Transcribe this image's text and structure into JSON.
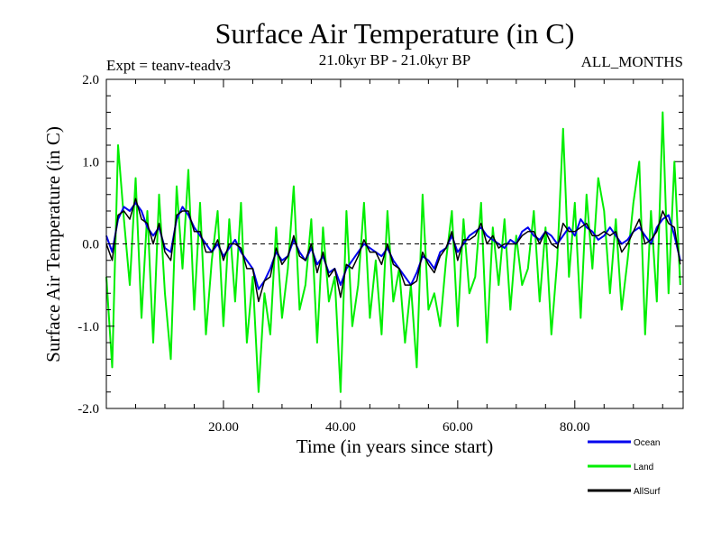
{
  "chart_data": {
    "type": "line",
    "title": "Surface Air Temperature (in C)",
    "subtitle_left": "Expt = teanv-teadv3",
    "subtitle_center": "21.0kyr BP - 21.0kyr BP",
    "subtitle_right": "ALL_MONTHS",
    "xlabel": "Time (in years since start)",
    "ylabel": "Surface Air Temperature (in C)",
    "xlim": [
      0,
      98.5
    ],
    "ylim": [
      -2.0,
      2.0
    ],
    "xticks": [
      20,
      40,
      60,
      80
    ],
    "xtick_labels": [
      "20.00",
      "40.00",
      "60.00",
      "80.00"
    ],
    "yticks": [
      -2.0,
      -1.0,
      0.0,
      1.0,
      2.0
    ],
    "ytick_labels": [
      "-2.0",
      "-1.0",
      "0.0",
      "1.0",
      "2.0"
    ],
    "zero_line": true,
    "grid": false,
    "legend_position": "bottom-right",
    "series": [
      {
        "name": "Land",
        "color": "#00ee00",
        "x": [
          0,
          1,
          2,
          3,
          4,
          5,
          6,
          7,
          8,
          9,
          10,
          11,
          12,
          13,
          14,
          15,
          16,
          17,
          18,
          19,
          20,
          21,
          22,
          23,
          24,
          25,
          26,
          27,
          28,
          29,
          30,
          31,
          32,
          33,
          34,
          35,
          36,
          37,
          38,
          39,
          40,
          41,
          42,
          43,
          44,
          45,
          46,
          47,
          48,
          49,
          50,
          51,
          52,
          53,
          54,
          55,
          56,
          57,
          58,
          59,
          60,
          61,
          62,
          63,
          64,
          65,
          66,
          67,
          68,
          69,
          70,
          71,
          72,
          73,
          74,
          75,
          76,
          77,
          78,
          79,
          80,
          81,
          82,
          83,
          84,
          85,
          86,
          87,
          88,
          89,
          90,
          91,
          92,
          93,
          94,
          95,
          96,
          97,
          98
        ],
        "values": [
          -0.4,
          -1.5,
          1.2,
          0.3,
          -0.5,
          0.8,
          -0.9,
          0.4,
          -1.2,
          0.6,
          -0.6,
          -1.4,
          0.7,
          -0.3,
          0.9,
          -0.8,
          0.5,
          -1.1,
          -0.2,
          0.4,
          -1.0,
          0.3,
          -0.7,
          0.5,
          -1.2,
          -0.4,
          -1.8,
          -0.6,
          -1.1,
          0.2,
          -0.9,
          -0.3,
          0.7,
          -0.8,
          -0.5,
          0.3,
          -1.2,
          0.2,
          -0.7,
          -0.4,
          -1.8,
          0.4,
          -1.0,
          -0.5,
          0.5,
          -0.9,
          -0.2,
          -1.1,
          0.4,
          -0.7,
          -0.3,
          -1.2,
          -0.5,
          -1.5,
          0.6,
          -0.8,
          -0.6,
          -1.0,
          -0.2,
          0.4,
          -1.0,
          0.3,
          -0.6,
          -0.4,
          0.5,
          -1.2,
          0.2,
          -0.5,
          0.3,
          -0.8,
          0.1,
          -0.5,
          -0.3,
          0.4,
          -0.7,
          0.2,
          -1.1,
          -0.2,
          1.4,
          -0.4,
          0.5,
          -0.9,
          0.6,
          -0.3,
          0.8,
          0.4,
          -0.6,
          0.3,
          -0.8,
          -0.2,
          0.5,
          1.0,
          -1.1,
          0.4,
          -0.7,
          1.6,
          -0.6,
          1.0,
          -0.5
        ]
      },
      {
        "name": "Ocean",
        "color": "#0000ee",
        "x": [
          0,
          1,
          2,
          3,
          4,
          5,
          6,
          7,
          8,
          9,
          10,
          11,
          12,
          13,
          14,
          15,
          16,
          17,
          18,
          19,
          20,
          21,
          22,
          23,
          24,
          25,
          26,
          27,
          28,
          29,
          30,
          31,
          32,
          33,
          34,
          35,
          36,
          37,
          38,
          39,
          40,
          41,
          42,
          43,
          44,
          45,
          46,
          47,
          48,
          49,
          50,
          51,
          52,
          53,
          54,
          55,
          56,
          57,
          58,
          59,
          60,
          61,
          62,
          63,
          64,
          65,
          66,
          67,
          68,
          69,
          70,
          71,
          72,
          73,
          74,
          75,
          76,
          77,
          78,
          79,
          80,
          81,
          82,
          83,
          84,
          85,
          86,
          87,
          88,
          89,
          90,
          91,
          92,
          93,
          94,
          95,
          96,
          97,
          98
        ],
        "values": [
          0.1,
          -0.1,
          0.3,
          0.45,
          0.4,
          0.5,
          0.4,
          0.2,
          0.1,
          0.2,
          -0.05,
          -0.1,
          0.3,
          0.45,
          0.35,
          0.2,
          0.1,
          0.0,
          -0.1,
          0.0,
          -0.15,
          -0.05,
          0.05,
          -0.1,
          -0.2,
          -0.3,
          -0.55,
          -0.45,
          -0.3,
          -0.1,
          -0.2,
          -0.15,
          0.05,
          -0.1,
          -0.2,
          -0.05,
          -0.25,
          -0.15,
          -0.35,
          -0.3,
          -0.5,
          -0.3,
          -0.2,
          -0.1,
          0.0,
          -0.05,
          -0.1,
          -0.15,
          -0.05,
          -0.2,
          -0.3,
          -0.4,
          -0.5,
          -0.35,
          -0.15,
          -0.2,
          -0.3,
          -0.1,
          -0.05,
          0.1,
          -0.1,
          0.0,
          0.1,
          0.15,
          0.2,
          0.1,
          0.05,
          0.0,
          -0.05,
          0.05,
          0.0,
          0.15,
          0.2,
          0.1,
          0.05,
          0.15,
          0.1,
          0.0,
          0.1,
          0.2,
          0.1,
          0.3,
          0.2,
          0.15,
          0.05,
          0.1,
          0.2,
          0.1,
          0.0,
          0.05,
          0.15,
          0.2,
          0.1,
          0.0,
          0.2,
          0.3,
          0.35,
          0.1,
          -0.2
        ]
      },
      {
        "name": "AllSurf",
        "color": "#000000",
        "x": [
          0,
          1,
          2,
          3,
          4,
          5,
          6,
          7,
          8,
          9,
          10,
          11,
          12,
          13,
          14,
          15,
          16,
          17,
          18,
          19,
          20,
          21,
          22,
          23,
          24,
          25,
          26,
          27,
          28,
          29,
          30,
          31,
          32,
          33,
          34,
          35,
          36,
          37,
          38,
          39,
          40,
          41,
          42,
          43,
          44,
          45,
          46,
          47,
          48,
          49,
          50,
          51,
          52,
          53,
          54,
          55,
          56,
          57,
          58,
          59,
          60,
          61,
          62,
          63,
          64,
          65,
          66,
          67,
          68,
          69,
          70,
          71,
          72,
          73,
          74,
          75,
          76,
          77,
          78,
          79,
          80,
          81,
          82,
          83,
          84,
          85,
          86,
          87,
          88,
          89,
          90,
          91,
          92,
          93,
          94,
          95,
          96,
          97,
          98
        ],
        "values": [
          0.0,
          -0.2,
          0.35,
          0.4,
          0.3,
          0.55,
          0.3,
          0.25,
          0.0,
          0.25,
          -0.1,
          -0.2,
          0.35,
          0.4,
          0.4,
          0.15,
          0.15,
          -0.1,
          -0.1,
          0.05,
          -0.2,
          0.0,
          0.0,
          -0.05,
          -0.3,
          -0.3,
          -0.7,
          -0.45,
          -0.4,
          -0.05,
          -0.25,
          -0.15,
          0.1,
          -0.15,
          -0.2,
          0.0,
          -0.35,
          -0.1,
          -0.4,
          -0.3,
          -0.65,
          -0.25,
          -0.3,
          -0.15,
          0.05,
          -0.1,
          -0.1,
          -0.25,
          0.0,
          -0.25,
          -0.3,
          -0.5,
          -0.5,
          -0.45,
          -0.1,
          -0.25,
          -0.35,
          -0.15,
          -0.05,
          0.15,
          -0.2,
          0.05,
          0.05,
          0.1,
          0.25,
          0.0,
          0.1,
          -0.05,
          0.0,
          0.0,
          0.0,
          0.1,
          0.15,
          0.15,
          0.0,
          0.15,
          0.0,
          -0.05,
          0.25,
          0.15,
          0.15,
          0.2,
          0.25,
          0.1,
          0.1,
          0.15,
          0.1,
          0.15,
          -0.1,
          0.0,
          0.15,
          0.3,
          0.0,
          0.05,
          0.15,
          0.4,
          0.25,
          0.2,
          -0.25
        ]
      }
    ],
    "legend": [
      {
        "label": "Ocean",
        "color": "#0000ee"
      },
      {
        "label": "Land",
        "color": "#00ee00"
      },
      {
        "label": "AllSurf",
        "color": "#000000"
      }
    ]
  }
}
